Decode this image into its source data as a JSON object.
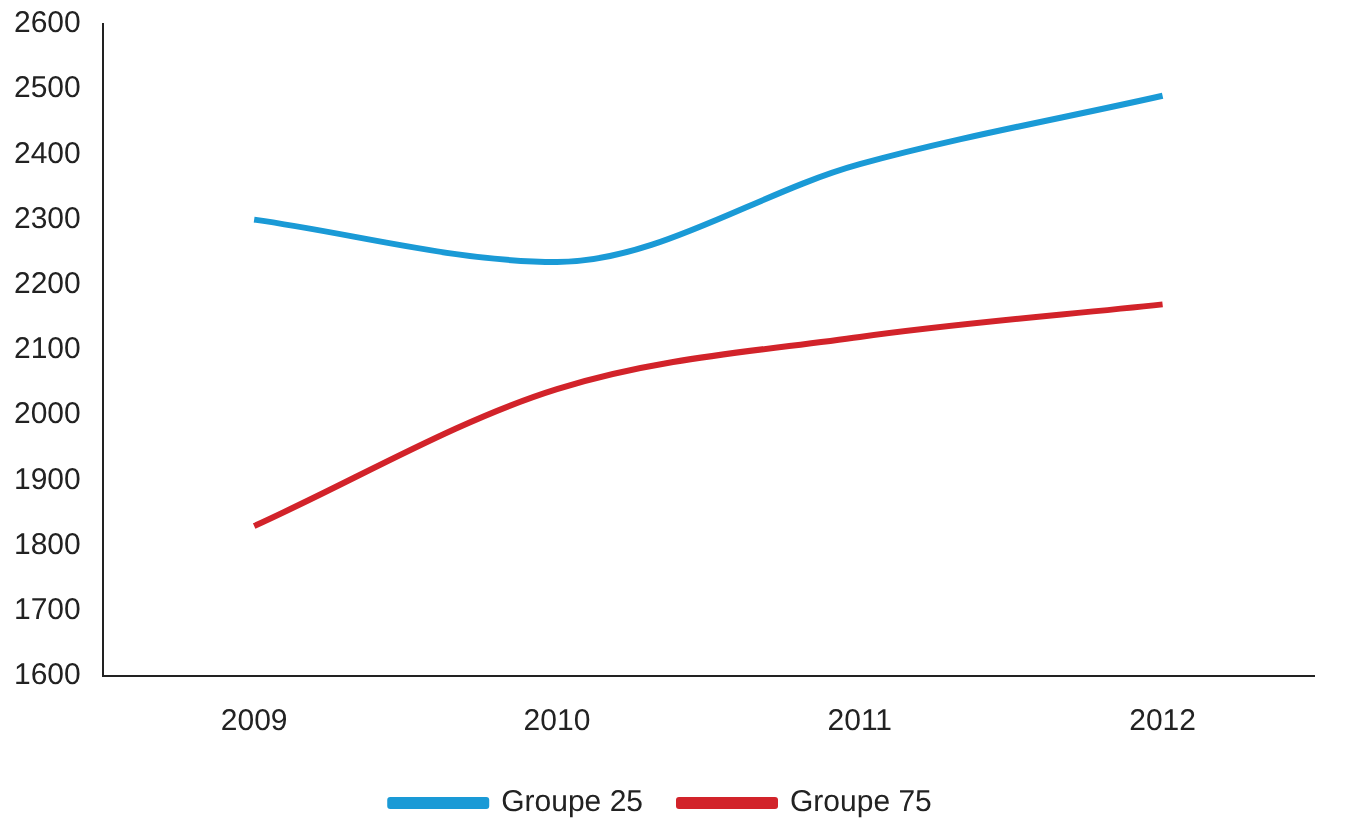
{
  "chart_data": {
    "type": "line",
    "categories": [
      "2009",
      "2010",
      "2011",
      "2012"
    ],
    "series": [
      {
        "name": "Groupe 25",
        "color": "#1a9ad6",
        "values": [
          2300,
          2235,
          2385,
          2490
        ]
      },
      {
        "name": "Groupe 75",
        "color": "#d2232a",
        "values": [
          1830,
          2040,
          2120,
          2170
        ]
      }
    ],
    "ylim": [
      1600,
      2600
    ],
    "yticks": [
      1600,
      1700,
      1800,
      1900,
      2000,
      2100,
      2200,
      2300,
      2400,
      2500,
      2600
    ],
    "grid": false,
    "legend": "bottom",
    "marker": "none",
    "line_style": "solid"
  }
}
